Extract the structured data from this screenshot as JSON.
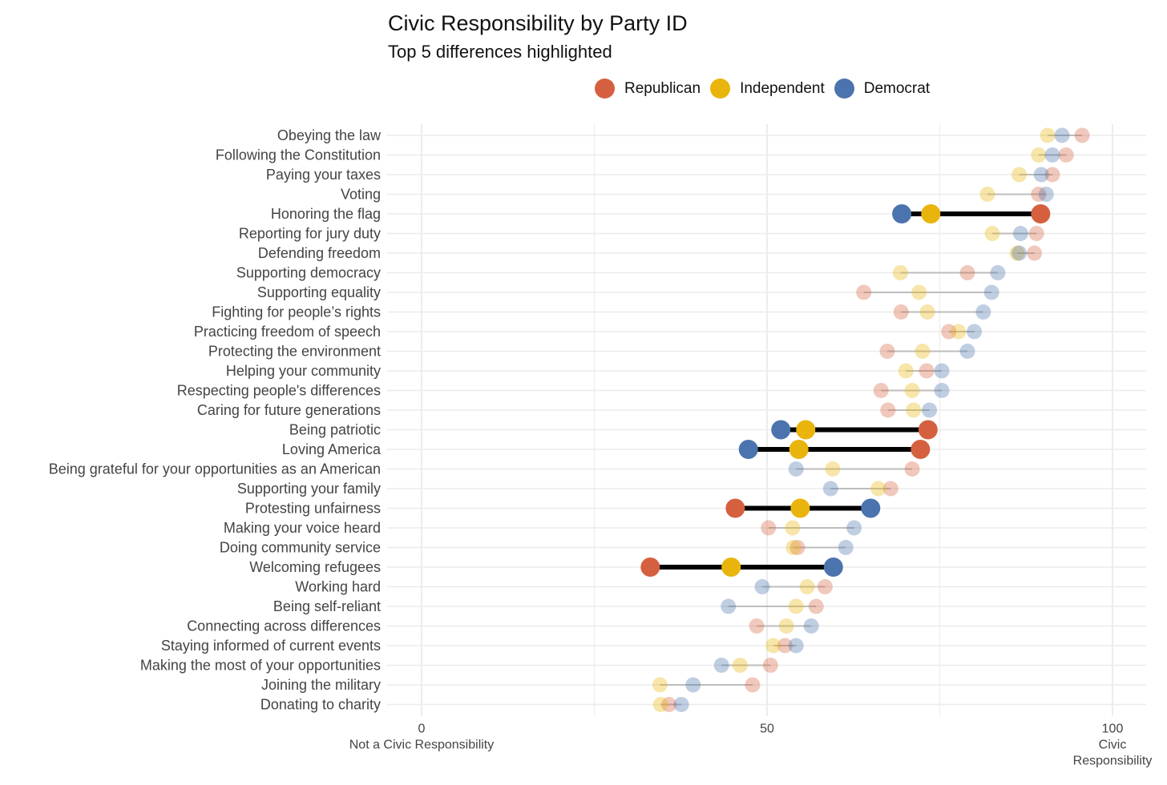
{
  "chart_data": {
    "type": "dot-range",
    "title": "Civic Responsibility by Party ID",
    "subtitle": "Top 5 differences highlighted",
    "legend": {
      "placement": "top",
      "entries": [
        "Republican",
        "Independent",
        "Democrat"
      ]
    },
    "colors": {
      "Republican": "#d5603f",
      "Independent": "#e9b40c",
      "Democrat": "#4b73ad"
    },
    "xlim": [
      0,
      100
    ],
    "x_ticks": [
      {
        "value": 0,
        "label": "0",
        "sublabel": "Not a Civic Responsibility"
      },
      {
        "value": 50,
        "label": "50",
        "sublabel": ""
      },
      {
        "value": 100,
        "label": "100",
        "sublabel": "Civic Responsibility"
      }
    ],
    "grid": true,
    "categories": [
      {
        "label": "Obeying the law",
        "Republican": 95.6,
        "Independent": 90.6,
        "Democrat": 92.7,
        "highlighted": false
      },
      {
        "label": "Following the Constitution",
        "Republican": 93.3,
        "Independent": 89.3,
        "Democrat": 91.3,
        "highlighted": false
      },
      {
        "label": "Paying your taxes",
        "Republican": 91.3,
        "Independent": 86.5,
        "Democrat": 89.7,
        "highlighted": false
      },
      {
        "label": "Voting",
        "Republican": 89.3,
        "Independent": 81.9,
        "Democrat": 90.4,
        "highlighted": false
      },
      {
        "label": "Honoring the flag",
        "Republican": 89.6,
        "Independent": 73.7,
        "Democrat": 69.5,
        "highlighted": true
      },
      {
        "label": "Reporting for jury duty",
        "Republican": 89.0,
        "Independent": 82.6,
        "Democrat": 86.7,
        "highlighted": false
      },
      {
        "label": "Defending freedom",
        "Republican": 88.7,
        "Independent": 86.2,
        "Democrat": 86.5,
        "highlighted": false
      },
      {
        "label": "Supporting democracy",
        "Republican": 79.0,
        "Independent": 69.3,
        "Democrat": 83.4,
        "highlighted": false
      },
      {
        "label": "Supporting equality",
        "Republican": 64.0,
        "Independent": 72.0,
        "Democrat": 82.5,
        "highlighted": false
      },
      {
        "label": "Fighting for people’s rights",
        "Republican": 69.4,
        "Independent": 73.2,
        "Democrat": 81.3,
        "highlighted": false
      },
      {
        "label": "Practicing freedom of speech",
        "Republican": 76.3,
        "Independent": 77.7,
        "Democrat": 80.0,
        "highlighted": false
      },
      {
        "label": "Protecting the environment",
        "Republican": 67.4,
        "Independent": 72.5,
        "Democrat": 79.0,
        "highlighted": false
      },
      {
        "label": "Helping your community",
        "Republican": 73.1,
        "Independent": 70.1,
        "Democrat": 75.3,
        "highlighted": false
      },
      {
        "label": "Respecting people's differences",
        "Republican": 66.5,
        "Independent": 71.0,
        "Democrat": 75.3,
        "highlighted": false
      },
      {
        "label": "Caring for future generations",
        "Republican": 67.5,
        "Independent": 71.2,
        "Democrat": 73.5,
        "highlighted": false
      },
      {
        "label": "Being patriotic",
        "Republican": 73.3,
        "Independent": 55.6,
        "Democrat": 52.0,
        "highlighted": true
      },
      {
        "label": "Loving America",
        "Republican": 72.2,
        "Independent": 54.6,
        "Democrat": 47.3,
        "highlighted": true
      },
      {
        "label": "Being grateful for your opportunities as an American",
        "Republican": 71.0,
        "Independent": 59.5,
        "Democrat": 54.2,
        "highlighted": false
      },
      {
        "label": "Supporting your family",
        "Republican": 67.9,
        "Independent": 66.1,
        "Democrat": 59.2,
        "highlighted": false
      },
      {
        "label": "Protesting unfairness",
        "Republican": 45.4,
        "Independent": 54.8,
        "Democrat": 65.0,
        "highlighted": true
      },
      {
        "label": "Making your voice heard",
        "Republican": 50.2,
        "Independent": 53.7,
        "Democrat": 62.6,
        "highlighted": false
      },
      {
        "label": "Doing community service",
        "Republican": 54.4,
        "Independent": 53.8,
        "Democrat": 61.4,
        "highlighted": false
      },
      {
        "label": "Welcoming refugees",
        "Republican": 33.1,
        "Independent": 44.8,
        "Democrat": 59.6,
        "highlighted": true
      },
      {
        "label": "Working hard",
        "Republican": 58.4,
        "Independent": 55.8,
        "Democrat": 49.3,
        "highlighted": false
      },
      {
        "label": "Being self-reliant",
        "Republican": 57.1,
        "Independent": 54.2,
        "Democrat": 44.4,
        "highlighted": false
      },
      {
        "label": "Connecting across differences",
        "Republican": 48.5,
        "Independent": 52.8,
        "Democrat": 56.4,
        "highlighted": false
      },
      {
        "label": "Staying informed of current events",
        "Republican": 52.6,
        "Independent": 50.9,
        "Democrat": 54.2,
        "highlighted": false
      },
      {
        "label": "Making the most of your opportunities",
        "Republican": 50.5,
        "Independent": 46.1,
        "Democrat": 43.4,
        "highlighted": false
      },
      {
        "label": "Joining the military",
        "Republican": 47.9,
        "Independent": 34.5,
        "Democrat": 39.3,
        "highlighted": false
      },
      {
        "label": "Donating to charity",
        "Republican": 35.8,
        "Independent": 34.6,
        "Democrat": 37.6,
        "highlighted": false
      }
    ]
  }
}
